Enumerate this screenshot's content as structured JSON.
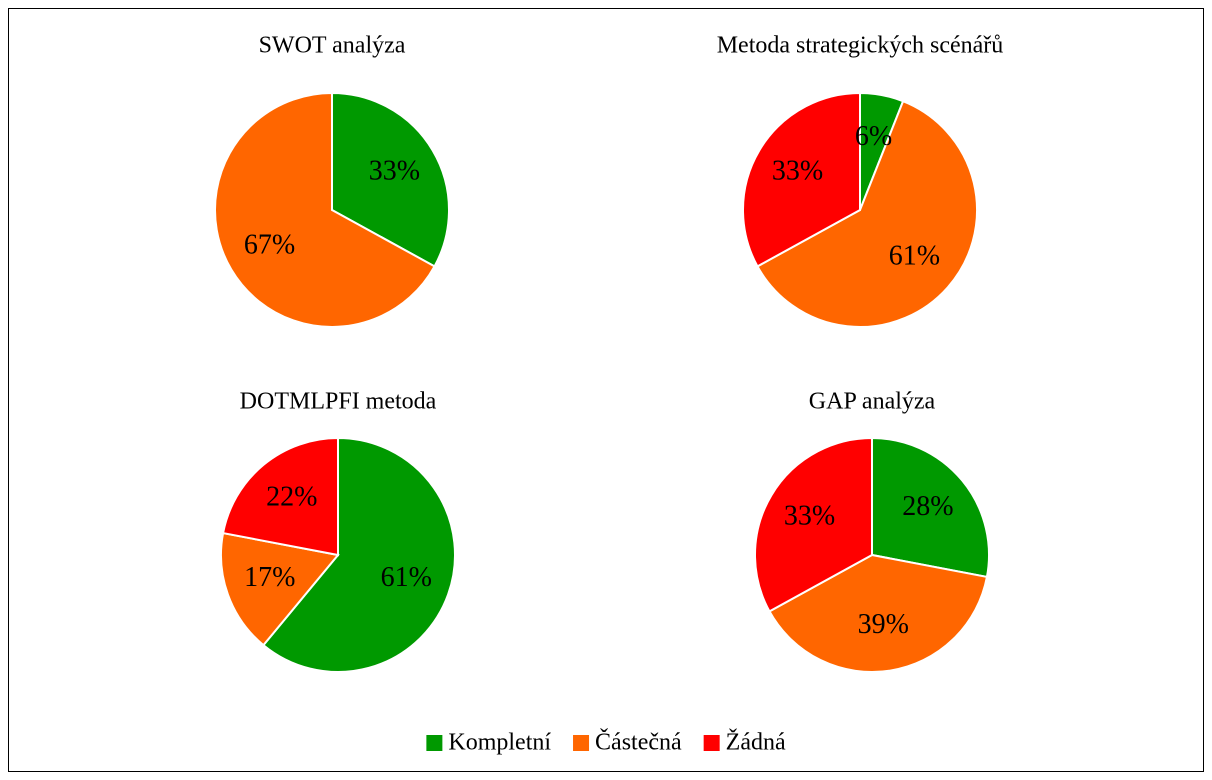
{
  "chart_data": [
    {
      "type": "pie",
      "title": "SWOT analýza",
      "values": [
        33,
        67,
        null
      ],
      "value_labels": [
        "33%",
        "67%",
        null
      ]
    },
    {
      "type": "pie",
      "title": "Metoda strategických scénářů",
      "values": [
        6,
        61,
        33
      ],
      "value_labels": [
        "6%",
        "61%",
        "33%"
      ]
    },
    {
      "type": "pie",
      "title": "DOTMLPFI metoda",
      "values": [
        61,
        17,
        22
      ],
      "value_labels": [
        "61%",
        "17%",
        "22%"
      ]
    },
    {
      "type": "pie",
      "title": "GAP analýza",
      "values": [
        28,
        39,
        33
      ],
      "value_labels": [
        "28%",
        "39%",
        "33%"
      ]
    }
  ],
  "legend": {
    "labels": [
      "Kompletní",
      "Částečná",
      "Žádná"
    ],
    "colors": [
      "#009900",
      "#ff6600",
      "#ff0000"
    ]
  }
}
